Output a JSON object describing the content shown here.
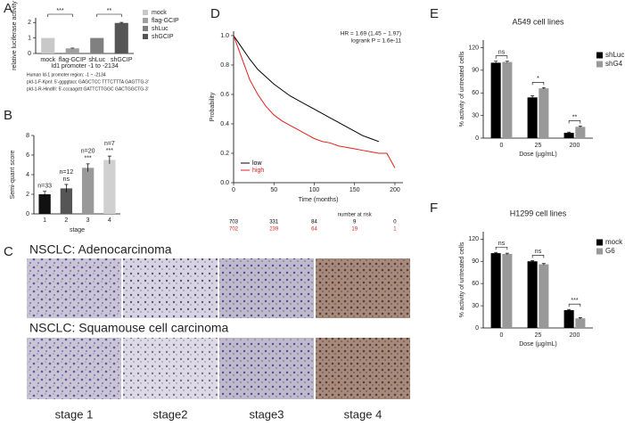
{
  "panel_labels": [
    "A",
    "B",
    "C",
    "D",
    "E",
    "F"
  ],
  "histology": {
    "rows": [
      "NSCLC: Adenocarcinoma",
      "NSCLC: Squamouse cell carcinoma"
    ],
    "stages": [
      "stage 1",
      "stage2",
      "stage3",
      "stage 4"
    ]
  },
  "chart_data": [
    {
      "type": "bar",
      "ylabel": "relative luciferase activity",
      "categories": [
        "mock",
        "flag-GCIP",
        "shLuc",
        "shGCIP"
      ],
      "values": [
        1.0,
        0.33,
        1.0,
        1.97
      ],
      "errors": [
        0,
        0.02,
        0,
        0.04
      ],
      "colors": [
        "#c8c8c8",
        "#a0a0a0",
        "#808080",
        "#555555"
      ],
      "legend": true,
      "significance": [
        "***",
        "**"
      ],
      "ylim": [
        0,
        2.3
      ],
      "yticks": [
        0,
        1,
        2
      ],
      "grid": false,
      "caption_lines": [
        "Id1 promoter -1 to -2134",
        "Human Id-1 promoter region: -1 ~ -2134",
        "pId-1-F-KpnI: 5'-ggggtacc GAGCTCC TTTCTTTA GAGTTG-3'",
        "pId-1-R-HindIII: 5'-cccaagctt GATTCTTGGC GACTGGCTG-3'"
      ]
    },
    {
      "type": "bar",
      "ylabel": "Semi-quant score",
      "xlabel": "stage",
      "categories": [
        "1",
        "2",
        "3",
        "4"
      ],
      "values": [
        2.0,
        2.6,
        4.7,
        5.5
      ],
      "errors": [
        0.3,
        0.4,
        0.4,
        0.4
      ],
      "colors": [
        "#111111",
        "#555555",
        "#999999",
        "#d0d0d0"
      ],
      "counts": [
        "n=33",
        "n=12",
        "n=20",
        "n=7"
      ],
      "significance": [
        null,
        "ns",
        "***",
        "***"
      ],
      "ylim": [
        0,
        8
      ],
      "yticks": [
        0,
        2,
        4,
        6,
        8
      ],
      "grid": false
    },
    {
      "type": "line",
      "xlabel": "Time (months)",
      "ylabel": "Probability",
      "x": [
        0,
        10,
        20,
        30,
        40,
        50,
        60,
        70,
        80,
        90,
        100,
        110,
        120,
        130,
        140,
        150,
        160,
        170,
        180,
        190,
        200
      ],
      "series": [
        {
          "name": "low",
          "color": "#000000",
          "values": [
            1,
            0.92,
            0.84,
            0.77,
            0.72,
            0.67,
            0.63,
            0.59,
            0.56,
            0.53,
            0.5,
            0.47,
            0.44,
            0.41,
            0.38,
            0.35,
            0.32,
            0.3,
            0.28,
            null,
            null
          ]
        },
        {
          "name": "high",
          "color": "#e0201b",
          "values": [
            1,
            0.85,
            0.7,
            0.6,
            0.52,
            0.46,
            0.42,
            0.39,
            0.36,
            0.33,
            0.3,
            0.28,
            0.27,
            0.25,
            0.24,
            0.23,
            0.22,
            0.21,
            0.2,
            0.2,
            0.1
          ]
        }
      ],
      "annotations": [
        "HR = 1.69 (1.45 − 1.97)",
        "logrank P = 1.6e-11"
      ],
      "risk_table": {
        "title": "number at risk",
        "rows": [
          [
            "703",
            "331",
            "84",
            "9",
            "0"
          ],
          [
            "702",
            "239",
            "64",
            "19",
            "1"
          ]
        ]
      },
      "legend_position": "bottom-left",
      "xlim": [
        0,
        210
      ],
      "xticks": [
        0,
        50,
        100,
        150,
        200
      ],
      "ylim": [
        0,
        1.03
      ],
      "yticks": [
        {
          "value": 0,
          "label": "0.0"
        },
        0.2,
        0.4,
        0.6,
        0.8,
        {
          "value": 1,
          "label": "1.0"
        }
      ],
      "grid": false
    },
    {
      "type": "bar",
      "title": "A549 cell lines",
      "ylabel": "% activity of untreated cells",
      "xlabel": "Dose (µg/mL)",
      "categories": [
        "0",
        "25",
        "200"
      ],
      "series": [
        {
          "name": "shLuc",
          "color": "#000000",
          "values": [
            100,
            54,
            7
          ],
          "errors": [
            2,
            2,
            1
          ]
        },
        {
          "name": "shG4",
          "color": "#999999",
          "values": [
            101,
            66,
            15
          ],
          "errors": [
            1,
            1,
            1
          ]
        }
      ],
      "significance": [
        "ns",
        "*",
        "**"
      ],
      "ylim": [
        0,
        130
      ],
      "yticks": [
        0,
        30,
        60,
        90,
        120
      ],
      "grid": false
    },
    {
      "type": "bar",
      "title": "H1299 cell lines",
      "ylabel": "% activity of untreated cells",
      "xlabel": "Dose (µg/mL)",
      "categories": [
        "0",
        "25",
        "200"
      ],
      "series": [
        {
          "name": "mock",
          "color": "#000000",
          "values": [
            101,
            90,
            24
          ],
          "errors": [
            1,
            1,
            1
          ]
        },
        {
          "name": "G6",
          "color": "#999999",
          "values": [
            100,
            86,
            13
          ],
          "errors": [
            1,
            1,
            1
          ]
        }
      ],
      "significance": [
        "ns",
        "ns",
        "***"
      ],
      "ylim": [
        0,
        130
      ],
      "yticks": [
        0,
        30,
        60,
        90,
        120
      ],
      "grid": false
    }
  ]
}
